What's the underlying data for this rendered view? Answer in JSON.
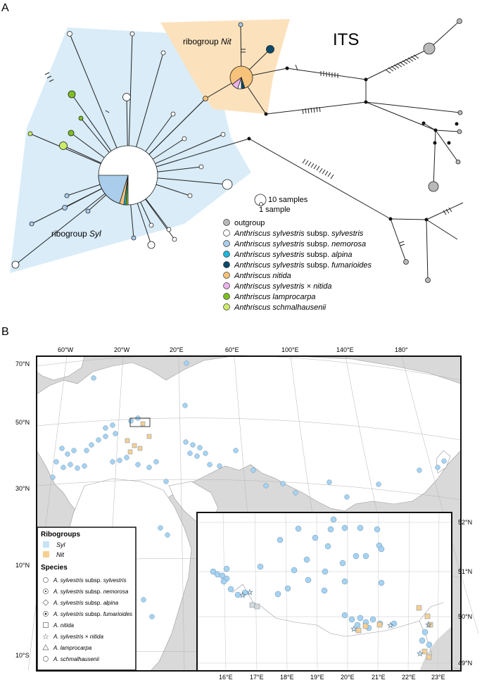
{
  "panel_a": {
    "letter": "A",
    "title": "ITS",
    "group_syl": {
      "label_prefix": "ribogroup ",
      "label_name": "Syl"
    },
    "group_nit": {
      "label_prefix": "ribogroup ",
      "label_name": "Nit"
    },
    "size_legend": {
      "large": "10 samples",
      "small": "1 sample"
    },
    "legend": [
      {
        "label": "outgroup",
        "italic": "",
        "color": "#b9b9b9"
      },
      {
        "label": "",
        "italic": "Anthriscus sylvestris",
        "rest": " subsp. ",
        "italic2": "sylvestris",
        "color": "#ffffff"
      },
      {
        "label": "",
        "italic": "Anthriscus sylvestris",
        "rest": " subsp. ",
        "italic2": "nemorosa",
        "color": "#a9cdea"
      },
      {
        "label": "",
        "italic": "Anthriscus sylvestris",
        "rest": " subsp. ",
        "italic2": "alpina",
        "color": "#1fb7dc"
      },
      {
        "label": "",
        "italic": "Anthriscus sylvestris",
        "rest": " subsp. ",
        "italic2": "fumarioides",
        "color": "#0c4a6a"
      },
      {
        "label": "",
        "italic": "Anthriscus nitida",
        "rest": "",
        "italic2": "",
        "color": "#f7c27a"
      },
      {
        "label": "",
        "italic": "Anthriscus sylvestris",
        "rest": " × ",
        "italic2": "nitida",
        "color": "#eab3ea"
      },
      {
        "label": "",
        "italic": "Anthriscus lamprocarpa",
        "rest": "",
        "italic2": "",
        "color": "#7fbf22"
      },
      {
        "label": "",
        "italic": "Anthriscus schmalhausenii",
        "rest": "",
        "italic2": "",
        "color": "#ccec6a"
      }
    ],
    "colors": {
      "syl_hull": "#d9ecf8",
      "nit_hull": "#fbe2bd"
    }
  },
  "panel_b": {
    "letter": "B",
    "lon_labels": [
      "60°W",
      "20°W",
      "20°E",
      "60°E",
      "100°E",
      "140°E",
      "180°"
    ],
    "lat_labels": [
      "70°N",
      "50°N",
      "30°N",
      "10°N",
      "10°S"
    ],
    "inset_lon_labels": [
      "16°E",
      "17°E",
      "18°E",
      "19°E",
      "20°E",
      "21°E",
      "22°E",
      "23°E"
    ],
    "inset_lat_labels": [
      "52°N",
      "51°N",
      "50°N",
      "49°N"
    ],
    "legend": {
      "ribogroups_title": "Ribogroups",
      "ribogroups": [
        {
          "name": "Syl",
          "color": "#c6e2f6"
        },
        {
          "name": "Nit",
          "color": "#f6cf93"
        }
      ],
      "species_title": "Species",
      "species": [
        {
          "italic": "A. sylvestris",
          "rest": " subsp. ",
          "italic2": "sylvestris",
          "symbol": "circle"
        },
        {
          "italic": "A. sylvestris",
          "rest": " subsp. ",
          "italic2": "nemorosa",
          "symbol": "dot-circle"
        },
        {
          "italic": "A. sylvestris",
          "rest": " subsp. ",
          "italic2": "alpina",
          "symbol": "diamond"
        },
        {
          "italic": "A. sylvestris",
          "rest": " subsp. ",
          "italic2": "fumarioides",
          "symbol": "dot-circle"
        },
        {
          "italic": "A. nitida",
          "rest": "",
          "italic2": "",
          "symbol": "square"
        },
        {
          "italic": "A. sylvestris",
          "rest": " × ",
          "italic2": "nitida",
          "symbol": "star"
        },
        {
          "italic": "A. lamprocarpa",
          "rest": "",
          "italic2": "",
          "symbol": "triangle"
        },
        {
          "italic": "A. schmalhausenii",
          "rest": "",
          "italic2": "",
          "symbol": "circle"
        }
      ]
    },
    "colors": {
      "land": "#ffffff",
      "sea": "#d9d9d9",
      "syl_point": "#a6d3f2",
      "nit_point": "#f6cf93"
    }
  }
}
